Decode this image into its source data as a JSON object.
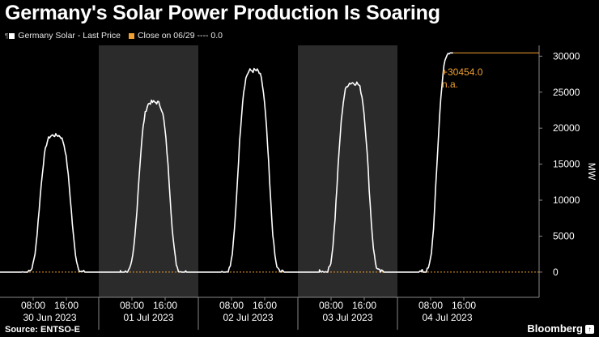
{
  "title": "Germany's Solar Power Production Is Soaring",
  "legend": [
    {
      "glyph": "¶",
      "label": "Germany Solar - Last Price",
      "color": "#ffffff"
    },
    {
      "glyph": "",
      "label": "Close on 06/29 ---- 0.0",
      "color": "#f0a030"
    }
  ],
  "source": "Source: ENTSO-E",
  "brand": "Bloomberg",
  "brand_badge": "↑",
  "colors": {
    "line": "#ffffff",
    "close": "#f0a030",
    "shade": "#2b2b2b",
    "axis": "#888888"
  },
  "chart_data": {
    "type": "line",
    "title": "Germany's Solar Power Production Is Soaring",
    "ylabel": "MW",
    "ylim": [
      -3500,
      31500
    ],
    "yticks": [
      0,
      5000,
      10000,
      15000,
      20000,
      25000,
      30000
    ],
    "grid": false,
    "days": [
      "30 Jun 2023",
      "01 Jul 2023",
      "02 Jul 2023",
      "03 Jul 2023",
      "04 Jul 2023"
    ],
    "hour_ticks": [
      "08:00",
      "16:00"
    ],
    "shaded_days": [
      "01 Jul 2023",
      "03 Jul 2023"
    ],
    "series": [
      {
        "name": "Germany Solar - Last Price",
        "daily_peaks": [
          19000,
          23600,
          28000,
          26300,
          30454
        ],
        "last_value": 30454.0
      },
      {
        "name": "Close on 06/29",
        "value": 0.0
      }
    ],
    "annotations": [
      "+30454.0",
      "n.a."
    ]
  }
}
